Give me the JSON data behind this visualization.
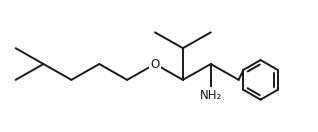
{
  "background": "#ffffff",
  "line_color": "#1a1a1a",
  "line_width": 1.4,
  "font_size_atom": 8.5,
  "nh2_color": "#1a1a1a",
  "o_color": "#1a1a1a",
  "figsize": [
    3.18,
    1.32
  ],
  "dpi": 100,
  "xlim": [
    0,
    318
  ],
  "ylim": [
    0,
    132
  ]
}
